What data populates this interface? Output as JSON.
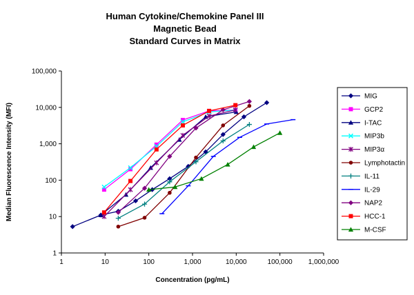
{
  "chart_data": {
    "type": "line",
    "title": [
      "Human Cytokine/Chemokine Panel III",
      "Magnetic Bead",
      "Standard Curves in Matrix"
    ],
    "xlabel": "Concentration (pg/mL)",
    "ylabel": "Median Fluorescence Intensity (MFI)",
    "xscale": "log",
    "yscale": "log",
    "xlim": [
      1,
      1000000
    ],
    "ylim": [
      1,
      100000
    ],
    "xticks": [
      1,
      10,
      100,
      1000,
      10000,
      100000,
      1000000
    ],
    "xtick_labels": [
      "1",
      "10",
      "100",
      "1,000",
      "10,000",
      "100,000",
      "1,000,000"
    ],
    "yticks": [
      1,
      10,
      100,
      1000,
      10000,
      100000
    ],
    "ytick_labels": [
      "1",
      "10",
      "100",
      "1,000",
      "10,000",
      "100,000"
    ],
    "grid": false,
    "legend_position": "right",
    "series": [
      {
        "name": "MIG",
        "color": "#000080",
        "marker": "diamond",
        "x": [
          1.8,
          8,
          20,
          50,
          120,
          300,
          800,
          2000,
          5000,
          15000,
          50000
        ],
        "y": [
          5.3,
          11,
          14,
          27,
          55,
          110,
          240,
          600,
          1800,
          5500,
          13500
        ]
      },
      {
        "name": "GCP2",
        "color": "#ff00ff",
        "marker": "square",
        "x": [
          9.5,
          38,
          150,
          600,
          2400,
          9600
        ],
        "y": [
          55,
          200,
          950,
          4500,
          8000,
          8500
        ]
      },
      {
        "name": "I-TAC",
        "color": "#000080",
        "marker": "triangle",
        "x": [
          8,
          30,
          110,
          500,
          2000,
          10000
        ],
        "y": [
          11,
          40,
          220,
          1300,
          5500,
          7500
        ]
      },
      {
        "name": "MIP3b",
        "color": "#00ffff",
        "marker": "x",
        "x": [
          9.5,
          38,
          150,
          600,
          2400,
          9600
        ],
        "y": [
          65,
          220,
          850,
          4000,
          7500,
          8500
        ]
      },
      {
        "name": "MIP3α",
        "color": "#800080",
        "marker": "star",
        "x": [
          9.5,
          38,
          150,
          600,
          2400,
          9600
        ],
        "y": [
          10,
          55,
          300,
          1700,
          5800,
          8500
        ]
      },
      {
        "name": "Lymphotactin",
        "color": "#800000",
        "marker": "circle",
        "x": [
          20,
          80,
          300,
          1200,
          5000,
          20000
        ],
        "y": [
          5.3,
          9.3,
          45,
          420,
          3200,
          11000
        ]
      },
      {
        "name": "IL-11",
        "color": "#008080",
        "marker": "plus",
        "x": [
          20,
          80,
          300,
          1200,
          5000,
          20000
        ],
        "y": [
          9,
          22,
          90,
          320,
          1200,
          3400
        ]
      },
      {
        "name": "IL-29",
        "color": "#0000ff",
        "marker": "dash",
        "x": [
          200,
          800,
          3000,
          12000,
          50000,
          200000
        ],
        "y": [
          12,
          70,
          450,
          1500,
          3500,
          4600
        ]
      },
      {
        "name": "NAP2",
        "color": "#800080",
        "marker": "diamond",
        "x": [
          20,
          80,
          300,
          1200,
          5000,
          20000
        ],
        "y": [
          13,
          60,
          450,
          2700,
          8600,
          14500
        ]
      },
      {
        "name": "HCC-1",
        "color": "#ff0000",
        "marker": "square",
        "x": [
          9.5,
          38,
          150,
          600,
          2400,
          9600
        ],
        "y": [
          13,
          95,
          700,
          3200,
          8000,
          11500
        ]
      },
      {
        "name": "M-CSF",
        "color": "#008000",
        "marker": "triangle",
        "x": [
          100,
          400,
          1600,
          6400,
          25000,
          100000
        ],
        "y": [
          55,
          65,
          110,
          270,
          820,
          2000
        ]
      }
    ]
  }
}
